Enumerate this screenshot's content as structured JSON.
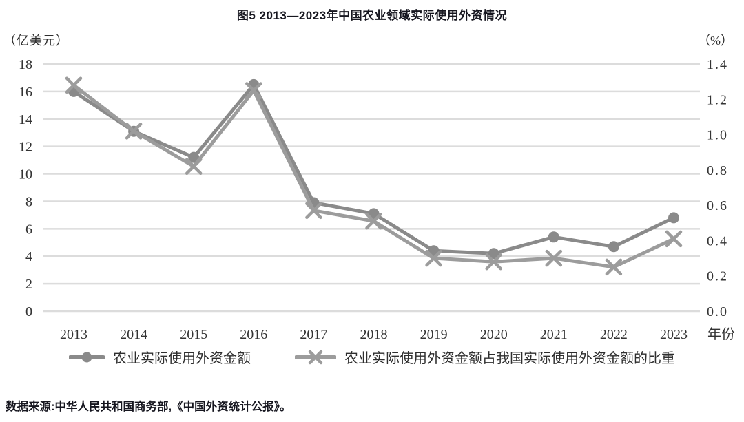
{
  "page": {
    "source_note": "数据来源:中华人民共和国商务部,《中国外资统计公报》。"
  },
  "chart_data": {
    "type": "line",
    "title": "图5 2013—2023年中国农业领域实际使用外资情况",
    "grid": "horizontal",
    "legend_position": "bottom",
    "left_axis": {
      "unit": "（亿美元）",
      "min": 0,
      "max": 18,
      "tick_step": 2,
      "ticks": [
        "18",
        "16",
        "14",
        "12",
        "10",
        "8",
        "6",
        "4",
        "2",
        "0"
      ]
    },
    "right_axis": {
      "unit": "（%）",
      "min": 0.0,
      "max": 1.4,
      "tick_step": 0.2,
      "ticks": [
        "1.4",
        "1.2",
        "1.0",
        "0.8",
        "0.6",
        "0.4",
        "0.2",
        "0.0"
      ]
    },
    "x_axis": {
      "label": "年份",
      "categories": [
        "2013",
        "2014",
        "2015",
        "2016",
        "2017",
        "2018",
        "2019",
        "2020",
        "2021",
        "2022",
        "2023"
      ]
    },
    "series": [
      {
        "name": "农业实际使用外资金额",
        "axis": "left",
        "marker": "circle",
        "color": "#8a8a8a",
        "values": [
          16.0,
          13.1,
          11.2,
          16.5,
          7.9,
          7.1,
          4.4,
          4.2,
          5.4,
          4.7,
          6.8
        ]
      },
      {
        "name": "农业实际使用外资金额占我国实际使用外资金额的比重",
        "axis": "right",
        "marker": "x",
        "color": "#9c9c9c",
        "values": [
          1.28,
          1.02,
          0.82,
          1.25,
          0.57,
          0.51,
          0.3,
          0.28,
          0.3,
          0.25,
          0.41
        ]
      }
    ],
    "colors": {
      "gridline": "#dcdcdc",
      "axis_text": "#333333"
    }
  }
}
